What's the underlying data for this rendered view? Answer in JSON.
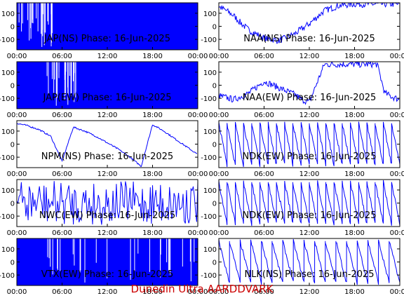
{
  "footer": {
    "text": "Dunedin Ultra AARDDVARK",
    "color": "#cc0000"
  },
  "colors": {
    "trace": "#0000ff",
    "axes": "#000000",
    "background": "#ffffff"
  },
  "chart_data": [
    {
      "type": "line",
      "title": "JAP(NS) Phase: 16-Jun-2025",
      "x_ticks": [
        "00:00",
        "06:00",
        "12:00",
        "18:00",
        "00:00"
      ],
      "y_ticks": [
        100,
        0,
        -100
      ],
      "ylim": [
        -180,
        180
      ],
      "xlim_hours": [
        0,
        24
      ],
      "pattern": "saturated",
      "series": [
        {
          "x_hours": [
            0,
            0.5,
            1,
            1.5,
            2,
            2.5,
            3,
            3.5,
            4,
            4.5,
            5
          ],
          "y": [
            -20,
            -40,
            -60,
            -30,
            -80,
            -50,
            -100,
            -70,
            -120,
            -60,
            -90
          ]
        }
      ]
    },
    {
      "type": "line",
      "title": "NAA(NS) Phase: 16-Jun-2025",
      "x_ticks": [
        "00:00",
        "06:00",
        "12:00",
        "18:00",
        "00:00"
      ],
      "y_ticks": [
        100,
        0,
        -100
      ],
      "ylim": [
        -180,
        180
      ],
      "xlim_hours": [
        0,
        24
      ],
      "pattern": "noisy-trend",
      "series": [
        {
          "x_hours": [
            0,
            1,
            2,
            3,
            4,
            6,
            8,
            10,
            12,
            14,
            16,
            18,
            20,
            22,
            24
          ],
          "y": [
            150,
            120,
            80,
            20,
            -30,
            -90,
            -110,
            -60,
            20,
            120,
            160,
            170,
            170,
            170,
            170
          ]
        }
      ]
    },
    {
      "type": "line",
      "title": "JAP(EW) Phase: 16-Jun-2025",
      "x_ticks": [
        "00:00",
        "06:00",
        "12:00",
        "18:00",
        "00:00"
      ],
      "y_ticks": [
        100,
        0,
        -100
      ],
      "ylim": [
        -180,
        180
      ],
      "xlim_hours": [
        0,
        24
      ],
      "pattern": "saturated",
      "series": [
        {
          "x_hours": [
            4,
            5,
            6,
            7,
            8
          ],
          "y": [
            100,
            80,
            50,
            20,
            -20
          ]
        }
      ]
    },
    {
      "type": "line",
      "title": "NAA(EW) Phase: 16-Jun-2025",
      "x_ticks": [
        "00:00",
        "06:00",
        "12:00",
        "18:00",
        "00:00"
      ],
      "y_ticks": [
        100,
        0,
        -100
      ],
      "ylim": [
        -180,
        180
      ],
      "xlim_hours": [
        0,
        24
      ],
      "pattern": "noisy-trend",
      "series": [
        {
          "x_hours": [
            0,
            2,
            4,
            6,
            8,
            10,
            11,
            12,
            14,
            18,
            21,
            22,
            23,
            24
          ],
          "y": [
            -80,
            -110,
            -60,
            30,
            -20,
            -70,
            -110,
            -130,
            160,
            160,
            160,
            -60,
            -90,
            -110
          ]
        }
      ]
    },
    {
      "type": "line",
      "title": "NPM(NS) Phase: 16-Jun-2025",
      "x_ticks": [
        "00:00",
        "06:00",
        "12:00",
        "18:00",
        "00:00"
      ],
      "y_ticks": [
        100,
        0,
        -100
      ],
      "ylim": [
        -180,
        180
      ],
      "xlim_hours": [
        0,
        24
      ],
      "pattern": "trend",
      "series": [
        {
          "x_hours": [
            0,
            1.5,
            3,
            4.5,
            6,
            7.5,
            9,
            10.5,
            12,
            13.5,
            15,
            16.5,
            18,
            19.5,
            21,
            22.5,
            24
          ],
          "y": [
            160,
            140,
            110,
            60,
            -130,
            130,
            100,
            60,
            10,
            -40,
            -100,
            -170,
            150,
            100,
            40,
            -20,
            -80
          ]
        }
      ]
    },
    {
      "type": "line",
      "title": "NDK(EW) Phase: 16-Jun-2025",
      "x_ticks": [
        "00:00",
        "06:00",
        "12:00",
        "18:00",
        "00:00"
      ],
      "y_ticks": [
        100,
        0,
        -100
      ],
      "ylim": [
        -180,
        180
      ],
      "xlim_hours": [
        0,
        24
      ],
      "pattern": "sawtooth",
      "series": [
        {
          "x_hours": [
            0,
            24
          ],
          "y": [
            160,
            -160
          ]
        }
      ]
    },
    {
      "type": "line",
      "title": "NWC(EW) Phase: 16-Jun-2025",
      "x_ticks": [
        "00:00",
        "06:00",
        "12:00",
        "18:00",
        "00:00"
      ],
      "y_ticks": [
        100,
        0,
        -100
      ],
      "ylim": [
        -180,
        180
      ],
      "xlim_hours": [
        0,
        24
      ],
      "pattern": "dense",
      "series": [
        {
          "x_hours": [
            0,
            24
          ],
          "y": [
            170,
            -170
          ]
        }
      ]
    },
    {
      "type": "line",
      "title": "NDK(EW) Phase: 16-Jun-2025",
      "x_ticks": [
        "00:00",
        "06:00",
        "12:00",
        "18:00",
        "00:00"
      ],
      "y_ticks": [
        100,
        0,
        -100
      ],
      "ylim": [
        -180,
        180
      ],
      "xlim_hours": [
        0,
        24
      ],
      "pattern": "sawtooth",
      "series": [
        {
          "x_hours": [
            0,
            24
          ],
          "y": [
            160,
            -160
          ]
        }
      ]
    },
    {
      "type": "line",
      "title": "VTX(EW) Phase: 16-Jun-2025",
      "x_ticks": [
        "00:00",
        "06:00",
        "12:00",
        "18:00",
        "00:00"
      ],
      "y_ticks": [
        100,
        0,
        -100
      ],
      "ylim": [
        -180,
        180
      ],
      "xlim_hours": [
        0,
        24
      ],
      "pattern": "saturated",
      "series": [
        {
          "x_hours": [
            0,
            24
          ],
          "y": [
            170,
            -170
          ]
        }
      ]
    },
    {
      "type": "line",
      "title": "NLK(NS) Phase: 16-Jun-2025",
      "x_ticks": [
        "00:00",
        "06:00",
        "12:00",
        "18:00",
        "00:00"
      ],
      "y_ticks": [
        100,
        0,
        -100
      ],
      "ylim": [
        -180,
        180
      ],
      "xlim_hours": [
        0,
        24
      ],
      "pattern": "sawtooth-sparse",
      "series": [
        {
          "x_hours": [
            0,
            24
          ],
          "y": [
            160,
            -160
          ]
        }
      ]
    }
  ]
}
